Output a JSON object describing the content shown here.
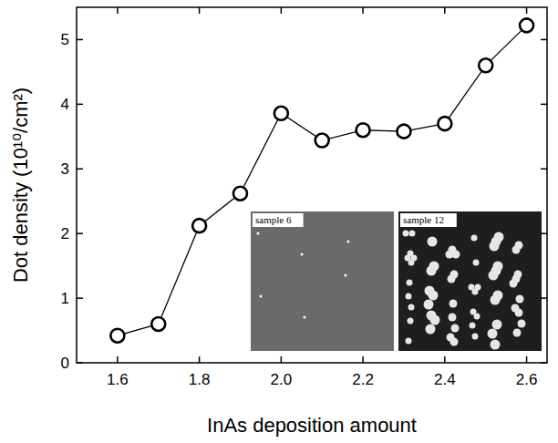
{
  "chart_data": {
    "type": "line",
    "x_label": "InAs deposition amount",
    "y_label": "Dot density (10¹⁰/cm²)",
    "x": [
      1.6,
      1.7,
      1.8,
      1.9,
      2.0,
      2.1,
      2.2,
      2.3,
      2.4,
      2.5,
      2.6
    ],
    "values": [
      0.42,
      0.6,
      2.12,
      2.62,
      3.86,
      3.44,
      3.6,
      3.58,
      3.7,
      4.6,
      5.22
    ],
    "color": "#000000",
    "marker": "circle-open",
    "line_style": "solid",
    "xlim": [
      1.5,
      2.65
    ],
    "ylim": [
      0,
      5.5
    ],
    "xticks": [
      1.6,
      1.8,
      {
        "value": 2,
        "label": "2.0"
      },
      2.2,
      2.4,
      2.6
    ],
    "yticks": [
      0,
      1,
      2,
      3,
      4,
      5
    ],
    "grid": false,
    "annotations": [
      "sample 6",
      "sample 12"
    ]
  }
}
